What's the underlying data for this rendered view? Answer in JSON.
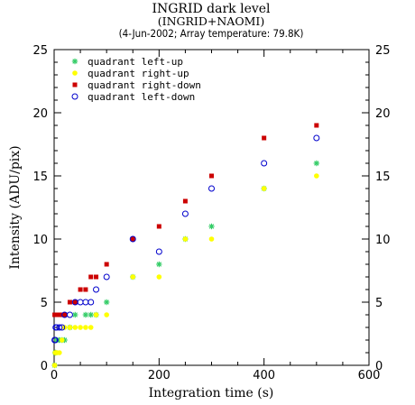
{
  "chart_data": {
    "type": "scatter",
    "title": "INGRID dark level",
    "subtitle": "(INGRID+NAOMI)",
    "subtitle2": "(4-Jun-2002; Array temperature: 79.8K)",
    "xlabel": "Integration time (s)",
    "ylabel": "Intensity (ADU/pix)",
    "xlim": [
      0,
      600
    ],
    "ylim": [
      0,
      25
    ],
    "xticks": [
      0,
      200,
      400,
      600
    ],
    "yticks": [
      0,
      5,
      10,
      15,
      20,
      25
    ],
    "grid": false,
    "legend_position": "top-left",
    "series": [
      {
        "name": "quadrant left-up",
        "marker": "asterisk",
        "color": "#33cc66",
        "x": [
          1,
          2,
          3,
          5,
          10,
          15,
          20,
          30,
          40,
          60,
          70,
          80,
          100,
          150,
          200,
          250,
          300,
          400,
          500
        ],
        "y": [
          0,
          1,
          1,
          2,
          2,
          2,
          2,
          3,
          4,
          4,
          4,
          4,
          5,
          7,
          8,
          10,
          11,
          14,
          16
        ]
      },
      {
        "name": "quadrant right-up",
        "marker": "dot",
        "color": "#ffff00",
        "x": [
          1,
          2,
          3,
          5,
          10,
          15,
          20,
          30,
          40,
          50,
          60,
          70,
          80,
          100,
          150,
          200,
          250,
          300,
          400,
          500
        ],
        "y": [
          0,
          1,
          1,
          1,
          1,
          2,
          3,
          3,
          3,
          3,
          3,
          3,
          4,
          4,
          7,
          7,
          10,
          10,
          14,
          15
        ]
      },
      {
        "name": "quadrant right-down",
        "marker": "square",
        "color": "#cc0000",
        "x": [
          1,
          2,
          3,
          5,
          10,
          15,
          20,
          30,
          40,
          50,
          60,
          70,
          80,
          100,
          150,
          200,
          250,
          300,
          400,
          500
        ],
        "y": [
          4,
          4,
          4,
          4,
          4,
          4,
          4,
          5,
          5,
          6,
          6,
          7,
          7,
          8,
          10,
          11,
          13,
          15,
          18,
          19
        ]
      },
      {
        "name": "quadrant left-down",
        "marker": "circle",
        "color": "#0000cc",
        "x": [
          1,
          2,
          3,
          5,
          10,
          15,
          20,
          30,
          40,
          50,
          60,
          70,
          80,
          100,
          150,
          200,
          250,
          300,
          400,
          500
        ],
        "y": [
          2,
          2,
          3,
          3,
          3,
          3,
          4,
          4,
          5,
          5,
          5,
          5,
          6,
          7,
          10,
          9,
          12,
          14,
          16,
          18
        ]
      }
    ]
  }
}
